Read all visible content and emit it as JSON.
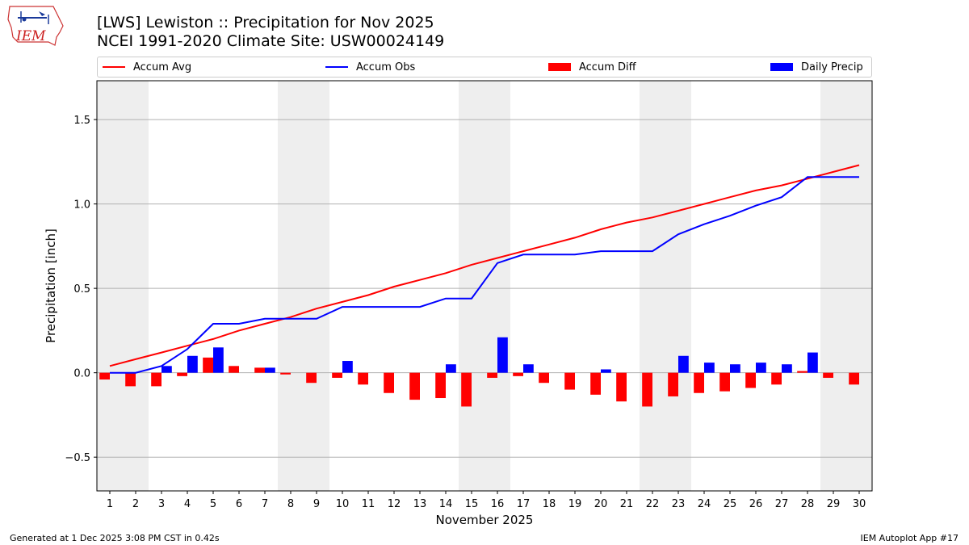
{
  "header": {
    "title_line1": "[LWS] Lewiston :: Precipitation for Nov 2025",
    "title_line2": "NCEI 1991-2020 Climate Site: USW00024149",
    "logo_text": "IEM"
  },
  "footer": {
    "generated": "Generated at 1 Dec 2025 3:08 PM CST in 0.42s",
    "app": "IEM Autoplot App #17"
  },
  "legend": [
    {
      "label": "Accum Avg",
      "kind": "line",
      "color": "#ff0000"
    },
    {
      "label": "Accum Obs",
      "kind": "line",
      "color": "#0000ff"
    },
    {
      "label": "Accum Diff",
      "kind": "bar",
      "color": "#ff0000"
    },
    {
      "label": "Daily Precip",
      "kind": "bar",
      "color": "#0000ff"
    }
  ],
  "chart_data": {
    "type": "bar",
    "xlabel": "November 2025",
    "ylabel": "Precipitation [inch]",
    "ylim": [
      -0.7,
      1.73
    ],
    "xlim": [
      0.5,
      30.5
    ],
    "yticks": [
      -0.5,
      0.0,
      0.5,
      1.0,
      1.5
    ],
    "ytick_labels": [
      "−0.5",
      "0.0",
      "0.5",
      "1.0",
      "1.5"
    ],
    "grid": "horizontal",
    "days": [
      1,
      2,
      3,
      4,
      5,
      6,
      7,
      8,
      9,
      10,
      11,
      12,
      13,
      14,
      15,
      16,
      17,
      18,
      19,
      20,
      21,
      22,
      23,
      24,
      25,
      26,
      27,
      28,
      29,
      30
    ],
    "weekend_bands": [
      [
        1,
        2
      ],
      [
        8,
        9
      ],
      [
        15,
        16
      ],
      [
        22,
        23
      ],
      [
        29,
        30
      ]
    ],
    "series": [
      {
        "name": "Accum Avg",
        "kind": "line",
        "color": "#ff0000",
        "values": [
          0.04,
          0.08,
          0.12,
          0.16,
          0.2,
          0.25,
          0.29,
          0.33,
          0.38,
          0.42,
          0.46,
          0.51,
          0.55,
          0.59,
          0.64,
          0.68,
          0.72,
          0.76,
          0.8,
          0.85,
          0.89,
          0.92,
          0.96,
          1.0,
          1.04,
          1.08,
          1.11,
          1.15,
          1.19,
          1.23
        ]
      },
      {
        "name": "Accum Obs",
        "kind": "line",
        "color": "#0000ff",
        "values": [
          0.0,
          0.0,
          0.04,
          0.14,
          0.29,
          0.29,
          0.32,
          0.32,
          0.32,
          0.39,
          0.39,
          0.39,
          0.39,
          0.44,
          0.44,
          0.65,
          0.7,
          0.7,
          0.7,
          0.72,
          0.72,
          0.72,
          0.82,
          0.88,
          0.93,
          0.99,
          1.04,
          1.16,
          1.16,
          1.16
        ]
      },
      {
        "name": "Accum Diff",
        "kind": "bar",
        "color": "#ff0000",
        "values": [
          -0.04,
          -0.08,
          -0.08,
          -0.02,
          0.09,
          0.04,
          0.03,
          -0.01,
          -0.06,
          -0.03,
          -0.07,
          -0.12,
          -0.16,
          -0.15,
          -0.2,
          -0.03,
          -0.02,
          -0.06,
          -0.1,
          -0.13,
          -0.17,
          -0.2,
          -0.14,
          -0.12,
          -0.11,
          -0.09,
          -0.07,
          0.01,
          -0.03,
          -0.07
        ]
      },
      {
        "name": "Daily Precip",
        "kind": "bar",
        "color": "#0000ff",
        "values": [
          0.0,
          0.0,
          0.04,
          0.1,
          0.15,
          0.0,
          0.03,
          0.0,
          0.0,
          0.07,
          0.0,
          0.0,
          0.0,
          0.05,
          0.0,
          0.21,
          0.05,
          0.0,
          0.0,
          0.02,
          0.0,
          0.0,
          0.1,
          0.06,
          0.05,
          0.06,
          0.05,
          0.12,
          0.0,
          0.0
        ]
      }
    ]
  }
}
